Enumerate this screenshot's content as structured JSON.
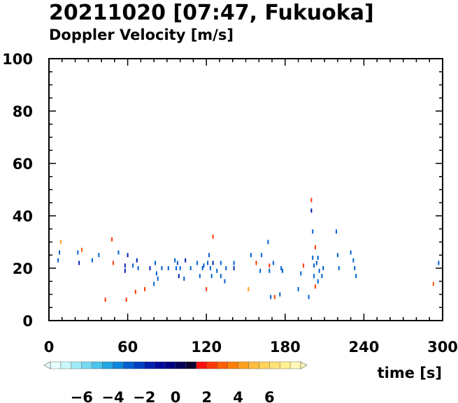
{
  "title": "20211020 [07:47, Fukuoka]",
  "subtitle": "Doppler Velocity [m/s]",
  "colors": {
    "frame": "#000000",
    "background": "#ffffff"
  },
  "chart_data": {
    "type": "scatter",
    "title": "20211020 [07:47, Fukuoka]",
    "subtitle": "Doppler Velocity [m/s]",
    "xlabel": "time [s]",
    "ylabel": "",
    "xlim": [
      0,
      300
    ],
    "ylim": [
      0,
      100
    ],
    "xticks": [
      0,
      60,
      120,
      180,
      240,
      300
    ],
    "yticks": [
      0,
      20,
      40,
      60,
      80,
      100
    ],
    "xtick_labels": [
      "0",
      "60",
      "120",
      "180",
      "240",
      "300"
    ],
    "ytick_labels": [
      "0",
      "20",
      "40",
      "60",
      "80",
      "100"
    ],
    "grid": false,
    "colorbar": {
      "label": "Doppler Velocity [m/s]",
      "range": [
        -8,
        8
      ],
      "ticks": [
        -6,
        -4,
        -2,
        0,
        2,
        4,
        6
      ],
      "tick_labels": [
        "−6",
        "−4",
        "−2",
        "0",
        "2",
        "4",
        "6"
      ],
      "colors": [
        "#e8ffff",
        "#c8f8fc",
        "#a0eaf8",
        "#78d8f2",
        "#4cc4ec",
        "#22a6e4",
        "#0a86da",
        "#0260d0",
        "#0040c4",
        "#0020b0",
        "#000a9c",
        "#000080",
        "#060058",
        "#0c0030",
        "#ff1010",
        "#ff3a08",
        "#ff6006",
        "#ff8004",
        "#ffa020",
        "#ffbc40",
        "#ffd258",
        "#ffe274",
        "#fff090",
        "#fff8b8"
      ]
    },
    "points": [
      {
        "x": 7,
        "y": 23,
        "v": -3
      },
      {
        "x": 8,
        "y": 26,
        "v": -3
      },
      {
        "x": 9,
        "y": 30,
        "v": 4
      },
      {
        "x": 22,
        "y": 26,
        "v": -3
      },
      {
        "x": 23,
        "y": 22,
        "v": -2
      },
      {
        "x": 25,
        "y": 27,
        "v": 3
      },
      {
        "x": 33,
        "y": 23,
        "v": -3
      },
      {
        "x": 38,
        "y": 25,
        "v": -3
      },
      {
        "x": 43,
        "y": 8,
        "v": 2
      },
      {
        "x": 48,
        "y": 31,
        "v": 2
      },
      {
        "x": 49,
        "y": 22,
        "v": 2
      },
      {
        "x": 53,
        "y": 26,
        "v": -3
      },
      {
        "x": 58,
        "y": 21,
        "v": -2
      },
      {
        "x": 58,
        "y": 19,
        "v": -2
      },
      {
        "x": 59,
        "y": 8,
        "v": 2
      },
      {
        "x": 60,
        "y": 25,
        "v": -2
      },
      {
        "x": 64,
        "y": 21,
        "v": -3
      },
      {
        "x": 66,
        "y": 11,
        "v": 2
      },
      {
        "x": 67,
        "y": 23,
        "v": -2
      },
      {
        "x": 68,
        "y": 20,
        "v": -3
      },
      {
        "x": 73,
        "y": 12,
        "v": 2
      },
      {
        "x": 77,
        "y": 20,
        "v": -2
      },
      {
        "x": 80,
        "y": 14,
        "v": -3
      },
      {
        "x": 81,
        "y": 22,
        "v": -3
      },
      {
        "x": 82,
        "y": 18,
        "v": -3
      },
      {
        "x": 83,
        "y": 16,
        "v": -3
      },
      {
        "x": 86,
        "y": 20,
        "v": -3
      },
      {
        "x": 91,
        "y": 20,
        "v": -3
      },
      {
        "x": 96,
        "y": 23,
        "v": -3
      },
      {
        "x": 97,
        "y": 20,
        "v": -3
      },
      {
        "x": 98,
        "y": 22,
        "v": -3
      },
      {
        "x": 99,
        "y": 17,
        "v": -2
      },
      {
        "x": 100,
        "y": 20,
        "v": -3
      },
      {
        "x": 103,
        "y": 16,
        "v": -3
      },
      {
        "x": 104,
        "y": 23,
        "v": -2
      },
      {
        "x": 108,
        "y": 20,
        "v": -3
      },
      {
        "x": 113,
        "y": 22,
        "v": -3
      },
      {
        "x": 115,
        "y": 17,
        "v": -3
      },
      {
        "x": 117,
        "y": 20,
        "v": -3
      },
      {
        "x": 118,
        "y": 21,
        "v": -3
      },
      {
        "x": 120,
        "y": 12,
        "v": 2
      },
      {
        "x": 121,
        "y": 22,
        "v": -3
      },
      {
        "x": 122,
        "y": 25,
        "v": -3
      },
      {
        "x": 123,
        "y": 20,
        "v": -3
      },
      {
        "x": 124,
        "y": 17,
        "v": -3
      },
      {
        "x": 125,
        "y": 32,
        "v": 2
      },
      {
        "x": 125,
        "y": 22,
        "v": -2
      },
      {
        "x": 128,
        "y": 19,
        "v": -3
      },
      {
        "x": 131,
        "y": 22,
        "v": -3
      },
      {
        "x": 131,
        "y": 17,
        "v": -3
      },
      {
        "x": 134,
        "y": 15,
        "v": -3
      },
      {
        "x": 135,
        "y": 20,
        "v": -3
      },
      {
        "x": 141,
        "y": 22,
        "v": -3
      },
      {
        "x": 141,
        "y": 20,
        "v": -2
      },
      {
        "x": 152,
        "y": 12,
        "v": 4
      },
      {
        "x": 154,
        "y": 25,
        "v": -3
      },
      {
        "x": 158,
        "y": 22,
        "v": 2
      },
      {
        "x": 161,
        "y": 19,
        "v": -3
      },
      {
        "x": 162,
        "y": 25,
        "v": -3
      },
      {
        "x": 167,
        "y": 30,
        "v": -3
      },
      {
        "x": 168,
        "y": 21,
        "v": 2
      },
      {
        "x": 168,
        "y": 19,
        "v": -3
      },
      {
        "x": 169,
        "y": 9,
        "v": -3
      },
      {
        "x": 171,
        "y": 22,
        "v": -3
      },
      {
        "x": 172,
        "y": 9,
        "v": 2
      },
      {
        "x": 176,
        "y": 10,
        "v": -3
      },
      {
        "x": 177,
        "y": 20,
        "v": -3
      },
      {
        "x": 178,
        "y": 19,
        "v": -3
      },
      {
        "x": 190,
        "y": 12,
        "v": -3
      },
      {
        "x": 192,
        "y": 18,
        "v": -3
      },
      {
        "x": 194,
        "y": 21,
        "v": 2
      },
      {
        "x": 198,
        "y": 9,
        "v": -3
      },
      {
        "x": 200,
        "y": 46,
        "v": 2
      },
      {
        "x": 200,
        "y": 42,
        "v": -2
      },
      {
        "x": 201,
        "y": 34,
        "v": -3
      },
      {
        "x": 201,
        "y": 24,
        "v": -3
      },
      {
        "x": 202,
        "y": 21,
        "v": -3
      },
      {
        "x": 202,
        "y": 17,
        "v": -3
      },
      {
        "x": 203,
        "y": 13,
        "v": 2
      },
      {
        "x": 203,
        "y": 28,
        "v": 2
      },
      {
        "x": 204,
        "y": 22,
        "v": -3
      },
      {
        "x": 205,
        "y": 24,
        "v": -3
      },
      {
        "x": 205,
        "y": 15,
        "v": -3
      },
      {
        "x": 206,
        "y": 19,
        "v": -3
      },
      {
        "x": 208,
        "y": 17,
        "v": -3
      },
      {
        "x": 209,
        "y": 20,
        "v": -3
      },
      {
        "x": 219,
        "y": 34,
        "v": -3
      },
      {
        "x": 220,
        "y": 25,
        "v": -3
      },
      {
        "x": 221,
        "y": 20,
        "v": -3
      },
      {
        "x": 230,
        "y": 26,
        "v": -3
      },
      {
        "x": 232,
        "y": 23,
        "v": -3
      },
      {
        "x": 233,
        "y": 20,
        "v": -3
      },
      {
        "x": 234,
        "y": 17,
        "v": -3
      },
      {
        "x": 293,
        "y": 14,
        "v": 3
      },
      {
        "x": 297,
        "y": 22,
        "v": -3
      }
    ]
  }
}
